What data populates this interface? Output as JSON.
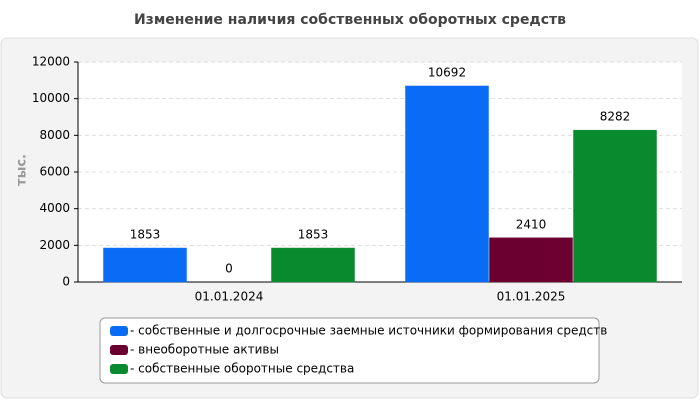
{
  "chart_data": {
    "type": "bar",
    "title": "Изменение наличия собственных оборотных средств",
    "y_label": "тыс.",
    "categories": [
      "01.01.2024",
      "01.01.2025"
    ],
    "series": [
      {
        "name": "- собственные и долгосрочные заемные источники формирования средств",
        "color": "#0a6cf5",
        "values": [
          1853,
          10692
        ]
      },
      {
        "name": "- внеоборотные активы",
        "color": "#6b0030",
        "values": [
          0,
          2410
        ]
      },
      {
        "name": "- собственные оборотные средства",
        "color": "#0a8a2e",
        "values": [
          1853,
          8282
        ]
      }
    ],
    "ylim": [
      0,
      12000
    ],
    "yticks": [
      0,
      2000,
      4000,
      6000,
      8000,
      10000,
      12000
    ],
    "grid": true
  }
}
